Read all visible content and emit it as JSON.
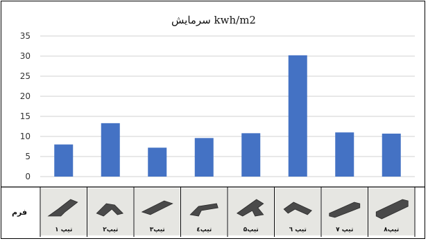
{
  "chart_data": {
    "type": "bar",
    "title": "سرمایش kwh/m2",
    "categories": [
      "تیپ ۱",
      "تیپ۲",
      "تیپ۳",
      "تیپ٤",
      "تیپ۵",
      "تیپ ٦",
      "تیپ ۷",
      "تیپ۸"
    ],
    "values": [
      8,
      13.3,
      7.2,
      9.6,
      10.8,
      30.2,
      11.0,
      10.7
    ],
    "ylim": [
      0,
      35
    ],
    "yticks": [
      0,
      5,
      10,
      15,
      20,
      25,
      30,
      35
    ],
    "grid": true,
    "legend": "none",
    "bar_color": "#4472c4",
    "shape_row_label": "فرم"
  }
}
